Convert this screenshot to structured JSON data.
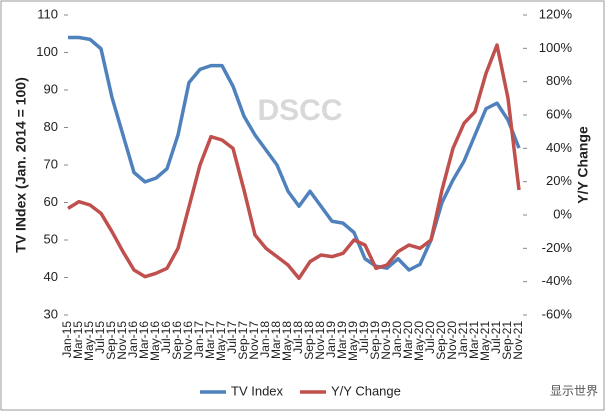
{
  "chart_data": {
    "type": "line",
    "watermark": "DSCC",
    "source_mark": "显示世界",
    "ylabel": "TV INdex (Jan. 2014 = 100)",
    "y2label": "Y/Y Change",
    "categories": [
      "Jan-15",
      "Mar-15",
      "May-15",
      "Jul-15",
      "Sep-15",
      "Nov-15",
      "Jan-16",
      "Mar-16",
      "May-16",
      "Jul-16",
      "Sep-16",
      "Nov-16",
      "Jan-17",
      "Mar-17",
      "May-17",
      "Jul-17",
      "Sep-17",
      "Nov-17",
      "Jan-18",
      "Mar-18",
      "May-18",
      "Jul-18",
      "Sep-18",
      "Nov-18",
      "Jan-19",
      "Mar-19",
      "May-19",
      "Jul-19",
      "Sep-19",
      "Nov-19",
      "Jan-20",
      "Mar-20",
      "May-20",
      "Jul-20",
      "Sep-20",
      "Nov-20",
      "Jan-21",
      "Mar-21",
      "May-21",
      "Jul-21",
      "Sep-21",
      "Nov-21"
    ],
    "series": [
      {
        "name": "TV Index",
        "color": "#4f81bd",
        "axis": "y",
        "values": [
          104,
          104,
          103.5,
          101,
          88,
          78,
          68,
          65.5,
          66.5,
          69,
          78,
          92,
          95.5,
          96.5,
          96.5,
          91,
          83,
          78,
          74,
          70,
          63,
          59,
          63,
          59,
          55,
          54.5,
          52,
          45,
          43,
          42.5,
          45,
          42,
          43.5,
          50,
          60,
          66,
          71,
          78,
          85,
          86.5,
          82,
          74.5
        ]
      },
      {
        "name": "Y/Y Change",
        "color": "#c0504d",
        "axis": "y2",
        "values": [
          4,
          8,
          6,
          1,
          -10,
          -22,
          -33,
          -37,
          -35,
          -32,
          -20,
          5,
          30,
          47,
          45,
          40,
          15,
          -12,
          -20,
          -25,
          -30,
          -38,
          -28,
          -24,
          -25,
          -23,
          -15,
          -18,
          -32,
          -30,
          -22,
          -18,
          -20,
          -15,
          15,
          40,
          55,
          62,
          85,
          102,
          70,
          15
        ]
      }
    ],
    "ylim": [
      30,
      110
    ],
    "yticks": [
      30,
      40,
      50,
      60,
      70,
      80,
      90,
      100,
      110
    ],
    "y2lim": [
      -60,
      120
    ],
    "y2ticks": [
      {
        "value": -60,
        "label": "-60%"
      },
      {
        "value": -40,
        "label": "-40%"
      },
      {
        "value": -20,
        "label": "-20%"
      },
      {
        "value": 0,
        "label": "0%"
      },
      {
        "value": 20,
        "label": "20%"
      },
      {
        "value": 40,
        "label": "40%"
      },
      {
        "value": 60,
        "label": "60%"
      },
      {
        "value": 80,
        "label": "80%"
      },
      {
        "value": 100,
        "label": "100%"
      },
      {
        "value": 120,
        "label": "120%"
      }
    ],
    "legend": "bottom",
    "grid": false
  }
}
